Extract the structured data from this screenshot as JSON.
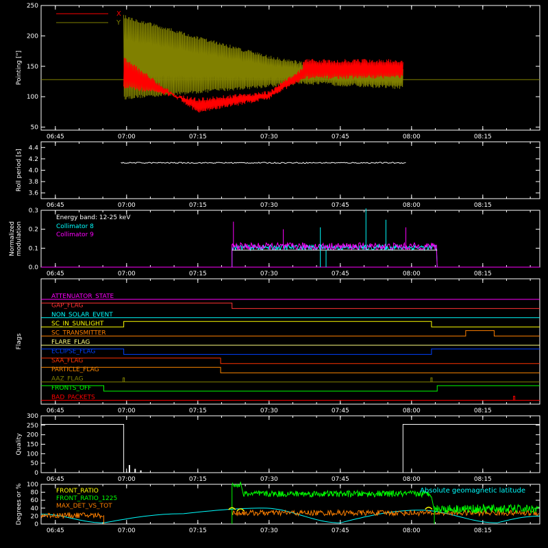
{
  "chart_data": [
    {
      "id": "pointing",
      "type": "line",
      "ylabel": "Pointing [\"]",
      "ylim": [
        45,
        250
      ],
      "yticks": [
        50,
        100,
        150,
        200,
        250
      ],
      "legend": [
        {
          "name": "X",
          "color": "#ff0000"
        },
        {
          "name": "Y",
          "color": "#808000"
        }
      ],
      "legend_placement": "top-left",
      "reference_line": 128,
      "series": [
        {
          "name": "X",
          "color": "#ff0000",
          "segments": [
            [
              6.99,
              7.25,
              120,
              98,
              160,
              72
            ],
            [
              7.25,
              7.5,
              98,
              110,
              72,
              95
            ],
            [
              7.5,
              7.62,
              110,
              150,
              95,
              128
            ],
            [
              7.62,
              7.97,
              162,
              162,
              128,
              130
            ]
          ]
        },
        {
          "name": "Y",
          "color": "#808000",
          "segments": [
            [
              6.99,
              7.25,
              235,
              200,
              95,
              105
            ],
            [
              7.25,
              7.5,
              200,
              168,
              105,
              115
            ],
            [
              7.5,
              7.62,
              168,
              158,
              115,
              120
            ],
            [
              7.62,
              7.97,
              158,
              150,
              120,
              112
            ]
          ]
        }
      ]
    },
    {
      "id": "roll",
      "type": "line",
      "ylabel": "Roll period [s]",
      "ylim": [
        3.5,
        4.5
      ],
      "yticks": [
        "3.6",
        "3.8",
        "4.0",
        "4.2",
        "4.4"
      ],
      "series": [
        {
          "name": "roll",
          "color": "#ffffff",
          "x": [
            6.98,
            7.98
          ],
          "y": [
            4.13,
            4.13
          ]
        }
      ]
    },
    {
      "id": "modulation",
      "type": "line",
      "ylabel_lines": [
        "Normalized",
        "modulation"
      ],
      "ylim": [
        0.0,
        0.3
      ],
      "yticks": [
        "0.0",
        "0.1",
        "0.2",
        "0.3"
      ],
      "annotation": "Energy band: 12-25 keV",
      "legend": [
        {
          "name": "Collimator 8",
          "color": "#00ffff"
        },
        {
          "name": "Collimator 9",
          "color": "#ff00ff"
        }
      ],
      "active_range": [
        7.37,
        8.09
      ],
      "level": 0.09,
      "spikes": [
        {
          "x": 7.375,
          "y": 0.24,
          "color": "#ff00ff"
        },
        {
          "x": 7.55,
          "y": 0.2,
          "color": "#ff00ff"
        },
        {
          "x": 7.68,
          "y": 0.21,
          "color": "#00ffff"
        },
        {
          "x": 7.84,
          "y": 0.31,
          "color": "#00ffff"
        },
        {
          "x": 7.91,
          "y": 0.25,
          "color": "#00ffff"
        },
        {
          "x": 7.98,
          "y": 0.21,
          "color": "#ff00ff"
        }
      ]
    },
    {
      "id": "flags",
      "type": "line",
      "ylabel": "Flags",
      "flags": [
        {
          "name": "ATTENUATOR_STATE",
          "color": "#ff00ff",
          "steps": [
            [
              6.7,
              0
            ]
          ]
        },
        {
          "name": "GAP_FLAG",
          "color": "#ff3333",
          "steps": [
            [
              6.7,
              1
            ],
            [
              7.37,
              0
            ]
          ]
        },
        {
          "name": "NON_SOLAR_EVENT",
          "color": "#00ffff",
          "steps": [
            [
              6.7,
              0
            ]
          ]
        },
        {
          "name": "SC_IN_SUNLIGHT",
          "color": "#ffff00",
          "steps": [
            [
              6.7,
              0
            ],
            [
              6.99,
              1
            ],
            [
              8.07,
              0
            ]
          ]
        },
        {
          "name": "SC_TRANSMITTER",
          "color": "#ff8000",
          "steps": [
            [
              6.7,
              0
            ],
            [
              8.19,
              1
            ],
            [
              8.29,
              0
            ]
          ]
        },
        {
          "name": "FLARE_FLAG",
          "color": "#ffff80",
          "steps": [
            [
              6.7,
              0
            ]
          ]
        },
        {
          "name": "ECLIPSE_FLAG",
          "color": "#0040ff",
          "steps": [
            [
              6.7,
              1
            ],
            [
              6.99,
              0
            ],
            [
              8.07,
              1
            ]
          ]
        },
        {
          "name": "SAA_FLAG",
          "color": "#ff3300",
          "steps": [
            [
              6.7,
              1
            ],
            [
              7.33,
              0
            ]
          ]
        },
        {
          "name": "PARTICLE_FLAG",
          "color": "#ff8800",
          "steps": [
            [
              6.7,
              1
            ],
            [
              7.33,
              0
            ]
          ]
        },
        {
          "name": "AAZ_FLAG",
          "color": "#808000",
          "steps": [
            [
              6.7,
              0
            ]
          ],
          "pulses": [
            6.99,
            8.07
          ]
        },
        {
          "name": "FRONTS_OFF",
          "color": "#00ff00",
          "steps": [
            [
              6.7,
              1
            ],
            [
              6.92,
              0
            ],
            [
              8.09,
              1
            ]
          ]
        },
        {
          "name": "BAD_PACKETS",
          "color": "#ff0000",
          "steps": [
            [
              6.7,
              0
            ]
          ],
          "pulses": [
            8.36
          ]
        }
      ]
    },
    {
      "id": "quality",
      "type": "line",
      "ylabel": "Quality",
      "ylim": [
        0,
        300
      ],
      "yticks": [
        0,
        50,
        100,
        150,
        200,
        250,
        300
      ],
      "series": [
        {
          "name": "quality",
          "color": "#ffffff",
          "x": [
            6.7,
            6.99,
            6.99,
            7.97,
            7.97,
            8.45
          ],
          "y": [
            255,
            255,
            0,
            0,
            255,
            255
          ]
        }
      ],
      "bursts": [
        [
          7.01,
          40
        ],
        [
          7.03,
          20
        ],
        [
          7.05,
          12
        ]
      ]
    },
    {
      "id": "ratios",
      "type": "line",
      "ylabel": "Degrees or %",
      "ylim": [
        0,
        100
      ],
      "yticks": [
        0,
        20,
        40,
        60,
        80,
        100
      ],
      "legend": [
        {
          "name": "FRONT_RATIO",
          "color": "#ffff00"
        },
        {
          "name": "FRONT_RATIO_1225",
          "color": "#00ff00"
        },
        {
          "name": "MAX_DET_VS_TOT",
          "color": "#ff8000"
        }
      ],
      "legend_right": {
        "name": "Absolute geomagnetic latitude",
        "color": "#00ffff"
      },
      "series": [
        {
          "name": "Absolute geomagnetic latitude",
          "color": "#00ffff",
          "x": [
            6.7,
            6.92,
            7.2,
            7.48,
            7.75,
            8.03,
            8.3,
            8.45
          ],
          "y": [
            25,
            3,
            26,
            40,
            3,
            35,
            3,
            20
          ]
        },
        {
          "name": "FRONT_RATIO_1225",
          "color": "#00ff00",
          "segments": [
            [
              7.37,
              7.4,
              98
            ],
            [
              7.41,
              8.07,
              76
            ],
            [
              8.08,
              8.45,
              38
            ]
          ]
        },
        {
          "name": "MAX_DET_VS_TOT",
          "color": "#ff8000",
          "segments": [
            [
              6.7,
              6.92,
              22
            ],
            [
              7.37,
              8.45,
              28
            ]
          ]
        },
        {
          "name": "FRONT_RATIO",
          "color": "#ffff00",
          "points": [
            [
              7.37,
              36
            ],
            [
              7.4,
              33
            ],
            [
              8.06,
              37
            ]
          ]
        }
      ]
    }
  ],
  "shared_x": {
    "xlim": [
      6.7,
      8.45
    ],
    "ticks": [
      "06:45",
      "07:00",
      "07:15",
      "07:30",
      "07:45",
      "08:00",
      "08:15"
    ],
    "tick_values": [
      6.75,
      7.0,
      7.25,
      7.5,
      7.75,
      8.0,
      8.25
    ]
  }
}
